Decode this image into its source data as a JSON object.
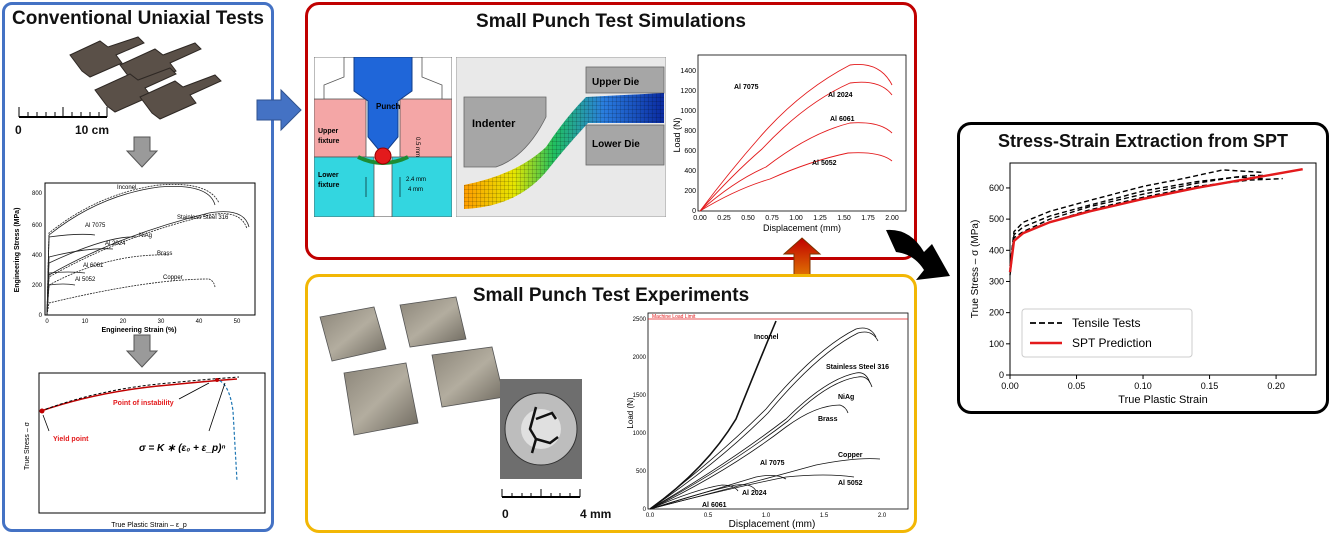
{
  "panels": {
    "uniaxial": {
      "title": "Conventional Uniaxial Tests",
      "scale_start": "0",
      "scale_end": "10 cm",
      "eng_chart": {
        "xlabel": "Engineering Strain (%)",
        "ylabel": "Engineering Stress (MPa)",
        "xticks": [
          "0",
          "10",
          "20",
          "30",
          "40",
          "50"
        ],
        "yticks": [
          "0",
          "200",
          "400",
          "600",
          "800"
        ],
        "labels": [
          "Inconel",
          "Stainless Steel 316",
          "Al 7075",
          "NiAg",
          "Al 2024",
          "Brass",
          "Al 6061",
          "Al 5052",
          "Copper"
        ]
      },
      "true_chart": {
        "xlabel": "True Plastic Strain – ε_p",
        "ylabel": "True Stress – σ",
        "yield_label": "Yield point",
        "instability_label": "Point of instability",
        "equation": "σ = K ∗ (ε₀ + ε_p)ⁿ"
      }
    },
    "simulations": {
      "title": "Small Punch Test Simulations",
      "fixture": {
        "punch": "Punch",
        "upper_fixture_1": "Upper",
        "upper_fixture_2": "fixture",
        "lower_fixture_1": "Lower",
        "lower_fixture_2": "fixture",
        "dim_thickness": "0.5 mm",
        "dim_24": "2.4 mm",
        "dim_4": "4 mm"
      },
      "fem": {
        "indenter": "Indenter",
        "upper_die": "Upper Die",
        "lower_die": "Lower Die"
      },
      "load_chart": {
        "xlabel": "Displacement (mm)",
        "ylabel": "Load (N)",
        "xticks": [
          "0.00",
          "0.25",
          "0.50",
          "0.75",
          "1.00",
          "1.25",
          "1.50",
          "1.75",
          "2.00"
        ],
        "yticks": [
          "0",
          "200",
          "400",
          "600",
          "800",
          "1000",
          "1200",
          "1400"
        ],
        "labels": [
          "Al 7075",
          "Al 2024",
          "Al 6061",
          "Al 5052"
        ]
      }
    },
    "experiments": {
      "title": "Small Punch Test Experiments",
      "scale_start": "0",
      "scale_end": "4 mm",
      "load_chart": {
        "xlabel": "Displacement (mm)",
        "ylabel": "Load (N)",
        "limit_label": "Machine Load Limit",
        "xticks": [
          "0.0",
          "0.5",
          "1.0",
          "1.5",
          "2.0"
        ],
        "yticks": [
          "0",
          "500",
          "1000",
          "1500",
          "2000",
          "2500"
        ],
        "labels": [
          "Inconel",
          "Stainless Steel 316",
          "NiAg",
          "Brass",
          "Copper",
          "Al 7075",
          "Al 5052",
          "Al 2024",
          "Al 6061"
        ]
      }
    },
    "extraction": {
      "title": "Stress-Strain Extraction from SPT",
      "chart_data": {
        "type": "line",
        "xlabel": "True Plastic Strain",
        "ylabel": "True Stress – σ (MPa)",
        "xticks": [
          "0.00",
          "0.05",
          "0.10",
          "0.15",
          "0.20"
        ],
        "yticks": [
          "0",
          "100",
          "200",
          "300",
          "400",
          "500",
          "600"
        ],
        "xlim": [
          0,
          0.23
        ],
        "ylim": [
          0,
          680
        ],
        "legend_position": "lower-right",
        "series": [
          {
            "name": "Tensile Tests",
            "style": "dashed",
            "color": "#000000",
            "x": [
              0,
              0.003,
              0.01,
              0.03,
              0.06,
              0.1,
              0.14,
              0.18,
              0.195
            ],
            "y": [
              340,
              450,
              475,
              510,
              545,
              590,
              620,
              640,
              640
            ]
          },
          {
            "name": "",
            "style": "dashed",
            "color": "#000000",
            "x": [
              0,
              0.003,
              0.01,
              0.03,
              0.06,
              0.1,
              0.14,
              0.17,
              0.19
            ],
            "y": [
              330,
              440,
              460,
              500,
              540,
              580,
              615,
              635,
              630
            ]
          },
          {
            "name": "",
            "style": "dashed",
            "color": "#000000",
            "x": [
              0,
              0.003,
              0.01,
              0.03,
              0.06,
              0.1,
              0.14,
              0.18,
              0.205
            ],
            "y": [
              320,
              430,
              455,
              490,
              530,
              570,
              605,
              625,
              630
            ]
          },
          {
            "name": "",
            "style": "dashed",
            "color": "#000000",
            "x": [
              0,
              0.003,
              0.01,
              0.03,
              0.06,
              0.1,
              0.13,
              0.16,
              0.19
            ],
            "y": [
              350,
              460,
              490,
              525,
              560,
              605,
              630,
              658,
              650
            ]
          },
          {
            "name": "SPT Prediction",
            "style": "solid",
            "color": "#e31a1c",
            "x": [
              0,
              0.003,
              0.01,
              0.03,
              0.06,
              0.1,
              0.14,
              0.18,
              0.22
            ],
            "y": [
              330,
              430,
              455,
              490,
              525,
              565,
              600,
              630,
              660
            ]
          }
        ]
      }
    }
  },
  "colors": {
    "uniaxial_border": "#4472c4",
    "simulation_border": "#c00000",
    "experiment_border": "#f2b705",
    "extraction_border": "#000000",
    "arrow_blue": "#4472c4",
    "arrow_gray": "#9a9a9a",
    "curve_red": "#e31a1c"
  }
}
